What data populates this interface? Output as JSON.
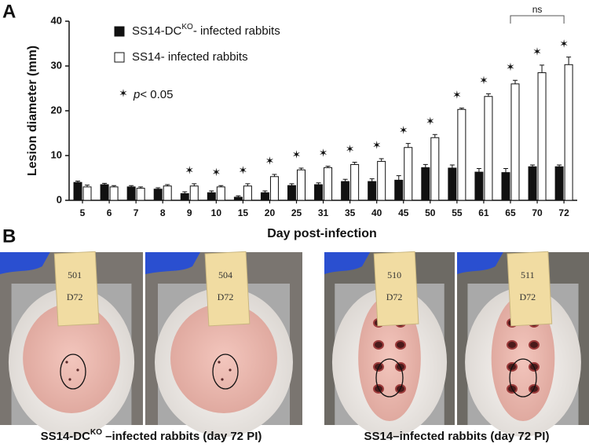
{
  "chart_data": {
    "type": "bar",
    "panel_label": "A",
    "x_label": "Day post-infection",
    "y_label": "Lesion diameter (mm)",
    "categories": [
      "5",
      "6",
      "7",
      "8",
      "9",
      "10",
      "15",
      "20",
      "25",
      "31",
      "35",
      "40",
      "45",
      "50",
      "55",
      "61",
      "65",
      "70",
      "72"
    ],
    "series": [
      {
        "name": "SS14-DC",
        "name_superscript": "KO",
        "name_rest": "- infected rabbits",
        "color": "#111111",
        "values": [
          4.0,
          3.5,
          3.0,
          2.5,
          1.5,
          1.7,
          0.7,
          1.7,
          3.3,
          3.5,
          4.2,
          4.2,
          4.5,
          7.3,
          7.2,
          6.3,
          6.2,
          7.5,
          7.5
        ],
        "errors": [
          0.3,
          0.3,
          0.3,
          0.3,
          0.4,
          0.4,
          0.3,
          0.4,
          0.4,
          0.4,
          0.5,
          0.6,
          1.0,
          0.7,
          0.7,
          0.8,
          0.9,
          0.4,
          0.4
        ]
      },
      {
        "name": "SS14",
        "name_superscript": "",
        "name_rest": "- infected rabbits",
        "color": "#ffffff",
        "values": [
          3.0,
          3.0,
          2.7,
          3.2,
          3.2,
          3.0,
          3.2,
          5.3,
          6.8,
          7.3,
          8.0,
          8.7,
          11.8,
          14.0,
          20.3,
          23.2,
          26.0,
          28.5,
          30.3
        ],
        "errors": [
          0.4,
          0.3,
          0.3,
          0.3,
          0.5,
          0.3,
          0.5,
          0.5,
          0.4,
          0.3,
          0.5,
          0.6,
          0.9,
          0.7,
          0.3,
          0.6,
          0.8,
          1.7,
          1.7
        ]
      }
    ],
    "ylim": [
      0,
      40
    ],
    "yticks": [
      0,
      10,
      20,
      30,
      40
    ],
    "grid": false,
    "significance": {
      "symbol": "✶",
      "label_italic": "p",
      "label": "< 0.05",
      "significant": [
        false,
        false,
        false,
        false,
        true,
        true,
        true,
        true,
        true,
        true,
        true,
        true,
        true,
        true,
        true,
        true,
        true,
        true,
        true
      ]
    },
    "comparison": {
      "label": "ns",
      "from_index": 16,
      "to_index": 18
    }
  },
  "panel_b": {
    "panel_label": "B",
    "groups": [
      {
        "caption": {
          "main": "SS14-DC",
          "superscript": "KO",
          "rest": " –infected rabbits (day 72 PI)"
        },
        "photos": [
          {
            "tag": [
              "501",
              "D72"
            ]
          },
          {
            "tag": [
              "504",
              "D72"
            ]
          }
        ]
      },
      {
        "caption": {
          "main": "SS14–infected rabbits (day 72 PI)",
          "superscript": "",
          "rest": ""
        },
        "photos": [
          {
            "tag": [
              "510",
              "D72"
            ]
          },
          {
            "tag": [
              "511",
              "D72"
            ]
          }
        ]
      }
    ]
  }
}
